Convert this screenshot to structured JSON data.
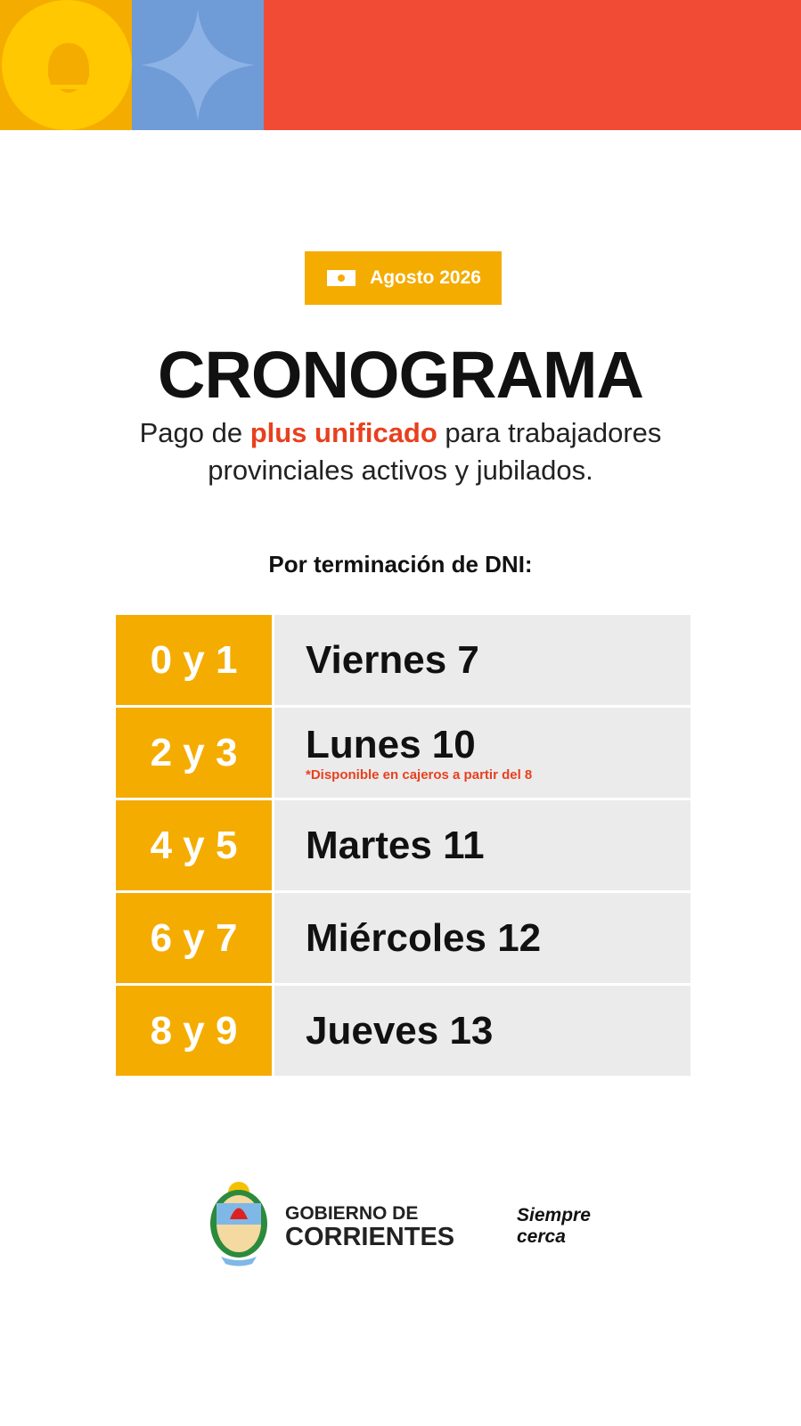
{
  "badge": "Agosto 2026",
  "title": "CRONOGRAMA",
  "subtitle": {
    "before": "Pago de ",
    "highlight": "plus unificado",
    "after": " para trabajadores provinciales activos y jubilados."
  },
  "intro": "Por terminación de DNI:",
  "rows": [
    {
      "dni": "0 y 1",
      "day": "Viernes 7"
    },
    {
      "dni": "2 y 3",
      "day": "Lunes 10",
      "note": "*Disponible en cajeros a partir del 8"
    },
    {
      "dni": "4 y 5",
      "day": "Martes 11"
    },
    {
      "dni": "6 y 7",
      "day": "Miércoles 12"
    },
    {
      "dni": "8 y 9",
      "day": "Jueves 13"
    }
  ],
  "footer": {
    "org_line1": "GOBIERNO DE",
    "org_line2": "CORRIENTES",
    "slogan_line1": "Siempre",
    "slogan_line2": "cerca"
  }
}
